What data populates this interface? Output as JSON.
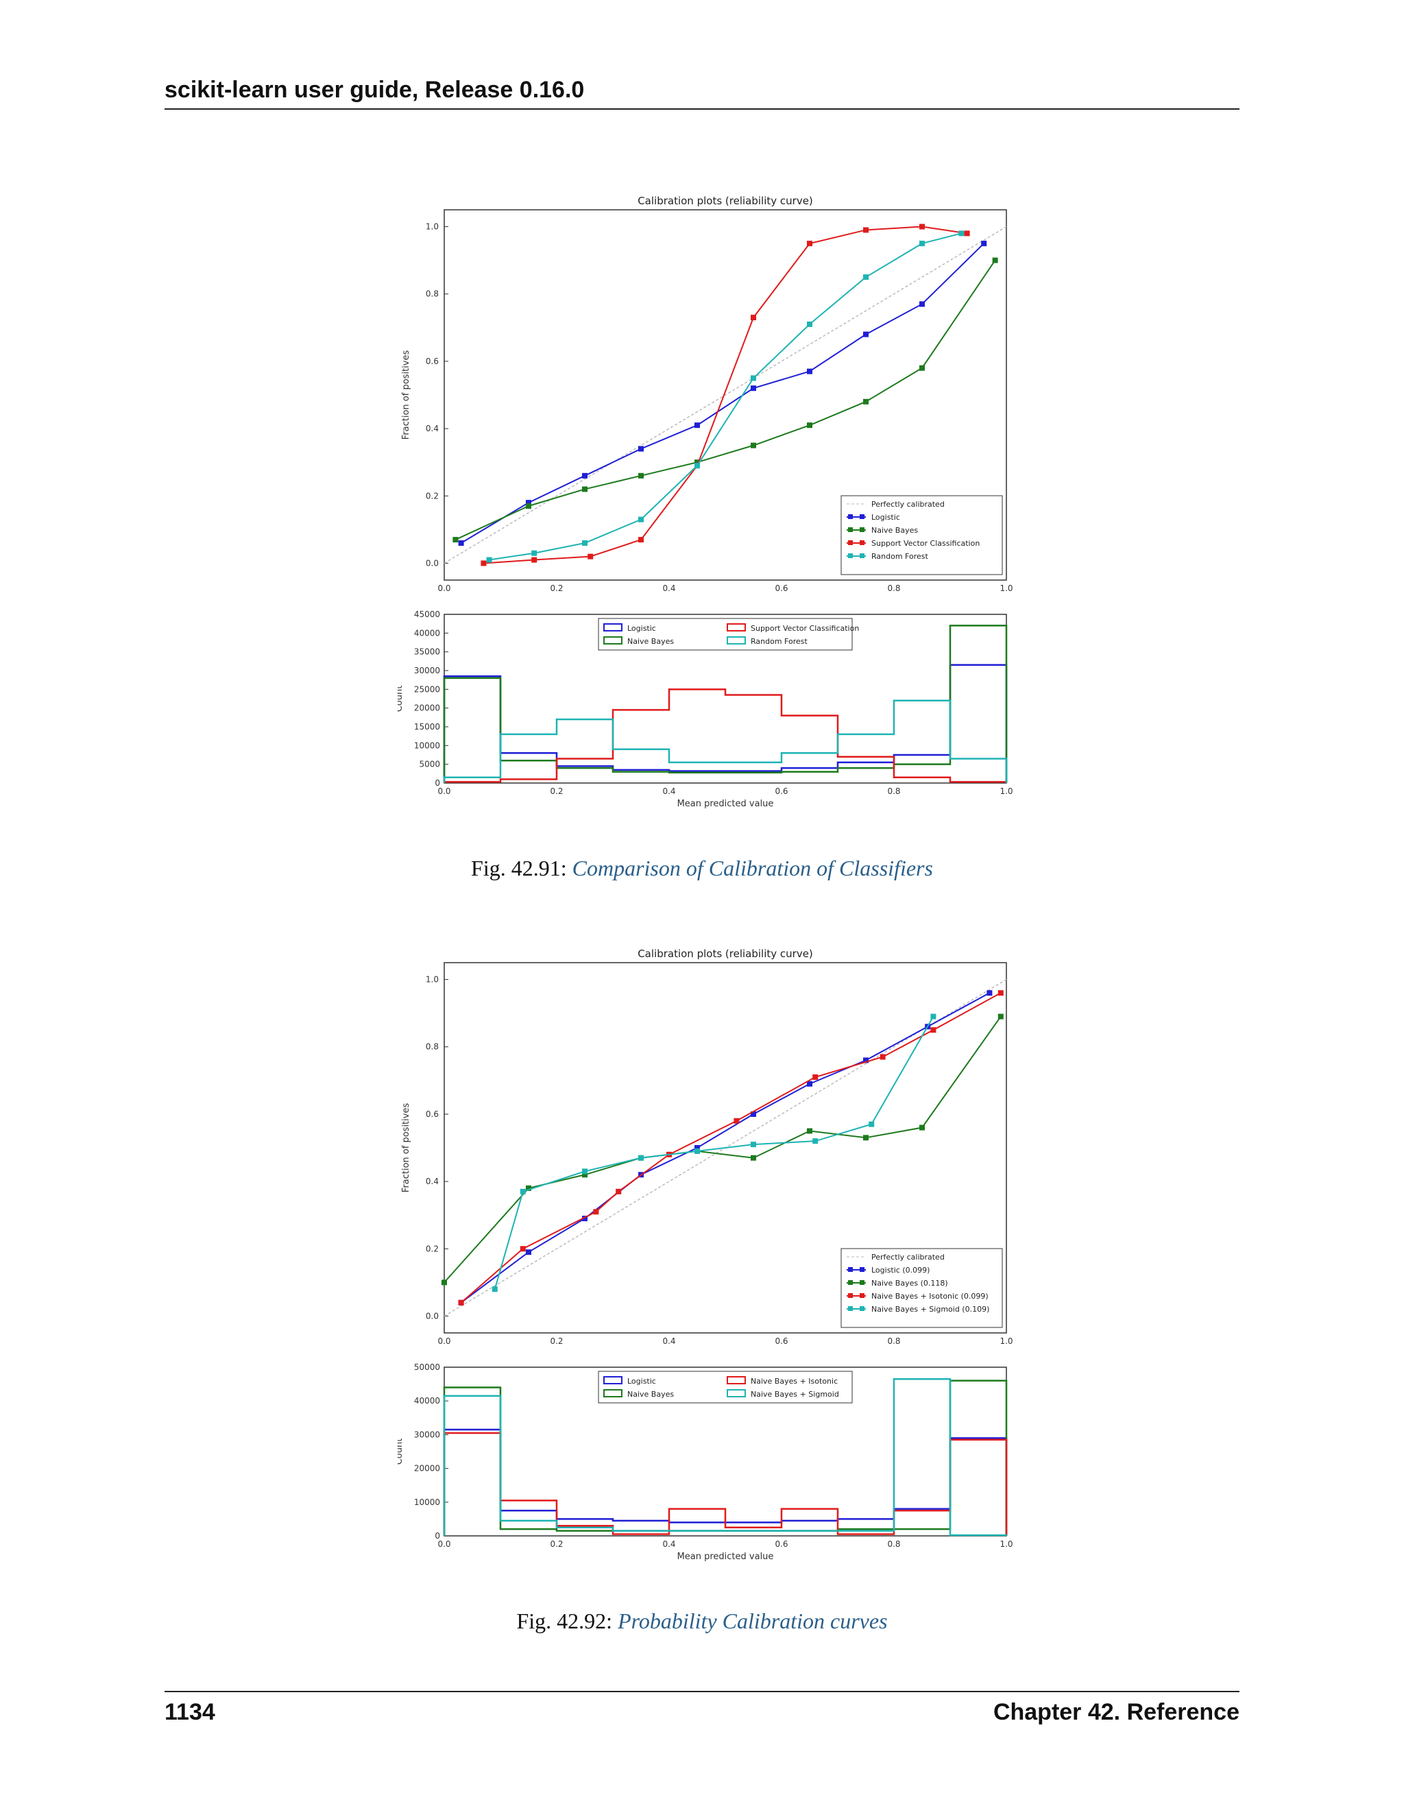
{
  "header": {
    "running_title": "scikit-learn user guide, Release 0.16.0"
  },
  "footer": {
    "page_number": "1134",
    "chapter": "Chapter 42.  Reference"
  },
  "figures": [
    {
      "caption_prefix": "Fig.  42.91: ",
      "caption_link": "Comparison of Calibration of Classifiers",
      "chart_data": [
        {
          "type": "line",
          "title": "Calibration plots  (reliability curve)",
          "xlabel": "",
          "ylabel": "Fraction of positives",
          "xlim": [
            0,
            1
          ],
          "ylim": [
            -0.05,
            1.05
          ],
          "xticks": [
            "0.0",
            "0.2",
            "0.4",
            "0.6",
            "0.8",
            "1.0"
          ],
          "yticks": [
            "0.0",
            "0.2",
            "0.4",
            "0.6",
            "0.8",
            "1.0"
          ],
          "legend_position": "lower-right",
          "reference": {
            "name": "Perfectly calibrated",
            "color": "#bbbbbb"
          },
          "series": [
            {
              "name": "Logistic",
              "color": "#1f1fd6",
              "x": [
                0.03,
                0.15,
                0.25,
                0.35,
                0.45,
                0.55,
                0.65,
                0.75,
                0.85,
                0.96
              ],
              "y": [
                0.06,
                0.18,
                0.26,
                0.34,
                0.41,
                0.52,
                0.57,
                0.68,
                0.77,
                0.95
              ]
            },
            {
              "name": "Naive Bayes",
              "color": "#1d7a1d",
              "x": [
                0.02,
                0.15,
                0.25,
                0.35,
                0.45,
                0.55,
                0.65,
                0.75,
                0.85,
                0.98
              ],
              "y": [
                0.07,
                0.17,
                0.22,
                0.26,
                0.3,
                0.35,
                0.41,
                0.48,
                0.58,
                0.9
              ]
            },
            {
              "name": "Support Vector Classification",
              "color": "#e01b1b",
              "x": [
                0.07,
                0.16,
                0.26,
                0.35,
                0.45,
                0.55,
                0.65,
                0.75,
                0.85,
                0.93
              ],
              "y": [
                0.0,
                0.01,
                0.02,
                0.07,
                0.29,
                0.73,
                0.95,
                0.99,
                1.0,
                0.98
              ]
            },
            {
              "name": "Random Forest",
              "color": "#1fb3b3",
              "x": [
                0.08,
                0.16,
                0.25,
                0.35,
                0.45,
                0.55,
                0.65,
                0.75,
                0.85,
                0.92
              ],
              "y": [
                0.01,
                0.03,
                0.06,
                0.13,
                0.29,
                0.55,
                0.71,
                0.85,
                0.95,
                0.98
              ]
            }
          ]
        },
        {
          "type": "histogram",
          "xlabel": "Mean predicted value",
          "ylabel": "Count",
          "xlim": [
            0,
            1
          ],
          "ylim": [
            0,
            45000
          ],
          "xticks": [
            "0.0",
            "0.2",
            "0.4",
            "0.6",
            "0.8",
            "1.0"
          ],
          "yticks": [
            "0",
            "5000",
            "10000",
            "15000",
            "20000",
            "25000",
            "30000",
            "35000",
            "40000",
            "45000"
          ],
          "legend_position": "upper-center",
          "bin_edges": [
            0,
            0.1,
            0.2,
            0.3,
            0.4,
            0.5,
            0.6,
            0.7,
            0.8,
            0.9,
            1.0
          ],
          "series": [
            {
              "name": "Logistic",
              "color": "#1f1fd6",
              "counts": [
                28500,
                8000,
                4500,
                3500,
                3200,
                3200,
                4000,
                5500,
                7500,
                31500
              ]
            },
            {
              "name": "Naive Bayes",
              "color": "#1d7a1d",
              "counts": [
                28000,
                6000,
                4000,
                3000,
                2800,
                2800,
                3000,
                4000,
                5000,
                42000
              ]
            },
            {
              "name": "Support Vector Classification",
              "color": "#e01b1b",
              "counts": [
                300,
                1000,
                6500,
                19500,
                25000,
                23500,
                18000,
                7000,
                1500,
                300
              ]
            },
            {
              "name": "Random Forest",
              "color": "#1fb3b3",
              "counts": [
                1500,
                13000,
                17000,
                9000,
                5500,
                5500,
                8000,
                13000,
                22000,
                6500
              ]
            }
          ]
        }
      ]
    },
    {
      "caption_prefix": "Fig.  42.92: ",
      "caption_link": "Probability Calibration curves",
      "chart_data": [
        {
          "type": "line",
          "title": "Calibration plots  (reliability curve)",
          "xlabel": "",
          "ylabel": "Fraction of positives",
          "xlim": [
            0,
            1
          ],
          "ylim": [
            -0.05,
            1.05
          ],
          "xticks": [
            "0.0",
            "0.2",
            "0.4",
            "0.6",
            "0.8",
            "1.0"
          ],
          "yticks": [
            "0.0",
            "0.2",
            "0.4",
            "0.6",
            "0.8",
            "1.0"
          ],
          "legend_position": "lower-right",
          "reference": {
            "name": "Perfectly calibrated",
            "color": "#bbbbbb"
          },
          "series": [
            {
              "name": "Logistic (0.099)",
              "color": "#1f1fd6",
              "x": [
                0.03,
                0.15,
                0.25,
                0.35,
                0.45,
                0.55,
                0.65,
                0.75,
                0.86,
                0.97
              ],
              "y": [
                0.04,
                0.19,
                0.29,
                0.42,
                0.5,
                0.6,
                0.69,
                0.76,
                0.86,
                0.96
              ]
            },
            {
              "name": "Naive Bayes (0.118)",
              "color": "#1d7a1d",
              "x": [
                0.0,
                0.15,
                0.25,
                0.35,
                0.45,
                0.55,
                0.65,
                0.75,
                0.85,
                0.99
              ],
              "y": [
                0.1,
                0.38,
                0.42,
                0.47,
                0.49,
                0.47,
                0.55,
                0.53,
                0.56,
                0.89
              ]
            },
            {
              "name": "Naive Bayes + Isotonic (0.099)",
              "color": "#e01b1b",
              "x": [
                0.03,
                0.14,
                0.27,
                0.31,
                0.4,
                0.52,
                0.66,
                0.78,
                0.87,
                0.99
              ],
              "y": [
                0.04,
                0.2,
                0.31,
                0.37,
                0.48,
                0.58,
                0.71,
                0.77,
                0.85,
                0.96
              ]
            },
            {
              "name": "Naive Bayes + Sigmoid (0.109)",
              "color": "#1fb3b3",
              "x": [
                0.09,
                0.14,
                0.25,
                0.35,
                0.45,
                0.55,
                0.66,
                0.76,
                0.87
              ],
              "y": [
                0.08,
                0.37,
                0.43,
                0.47,
                0.49,
                0.51,
                0.52,
                0.57,
                0.89
              ]
            }
          ]
        },
        {
          "type": "histogram",
          "xlabel": "Mean predicted value",
          "ylabel": "Count",
          "xlim": [
            0,
            1
          ],
          "ylim": [
            0,
            50000
          ],
          "xticks": [
            "0.0",
            "0.2",
            "0.4",
            "0.6",
            "0.8",
            "1.0"
          ],
          "yticks": [
            "0",
            "10000",
            "20000",
            "30000",
            "40000",
            "50000"
          ],
          "legend_position": "upper-center",
          "bin_edges": [
            0,
            0.1,
            0.2,
            0.3,
            0.4,
            0.5,
            0.6,
            0.7,
            0.8,
            0.9,
            1.0
          ],
          "series": [
            {
              "name": "Logistic",
              "color": "#1f1fd6",
              "counts": [
                31500,
                7500,
                5000,
                4500,
                4000,
                4000,
                4500,
                5000,
                8000,
                29000
              ]
            },
            {
              "name": "Naive Bayes",
              "color": "#1d7a1d",
              "counts": [
                44000,
                2000,
                1500,
                1500,
                1500,
                1500,
                1500,
                2000,
                2000,
                46000
              ]
            },
            {
              "name": "Naive Bayes + Isotonic",
              "color": "#e01b1b",
              "counts": [
                30500,
                10500,
                3000,
                500,
                8000,
                2500,
                8000,
                500,
                7500,
                28500
              ]
            },
            {
              "name": "Naive Bayes + Sigmoid",
              "color": "#1fb3b3",
              "counts": [
                41500,
                4500,
                2500,
                1500,
                1500,
                1500,
                1500,
                1500,
                46500,
                200
              ]
            }
          ]
        }
      ]
    }
  ]
}
